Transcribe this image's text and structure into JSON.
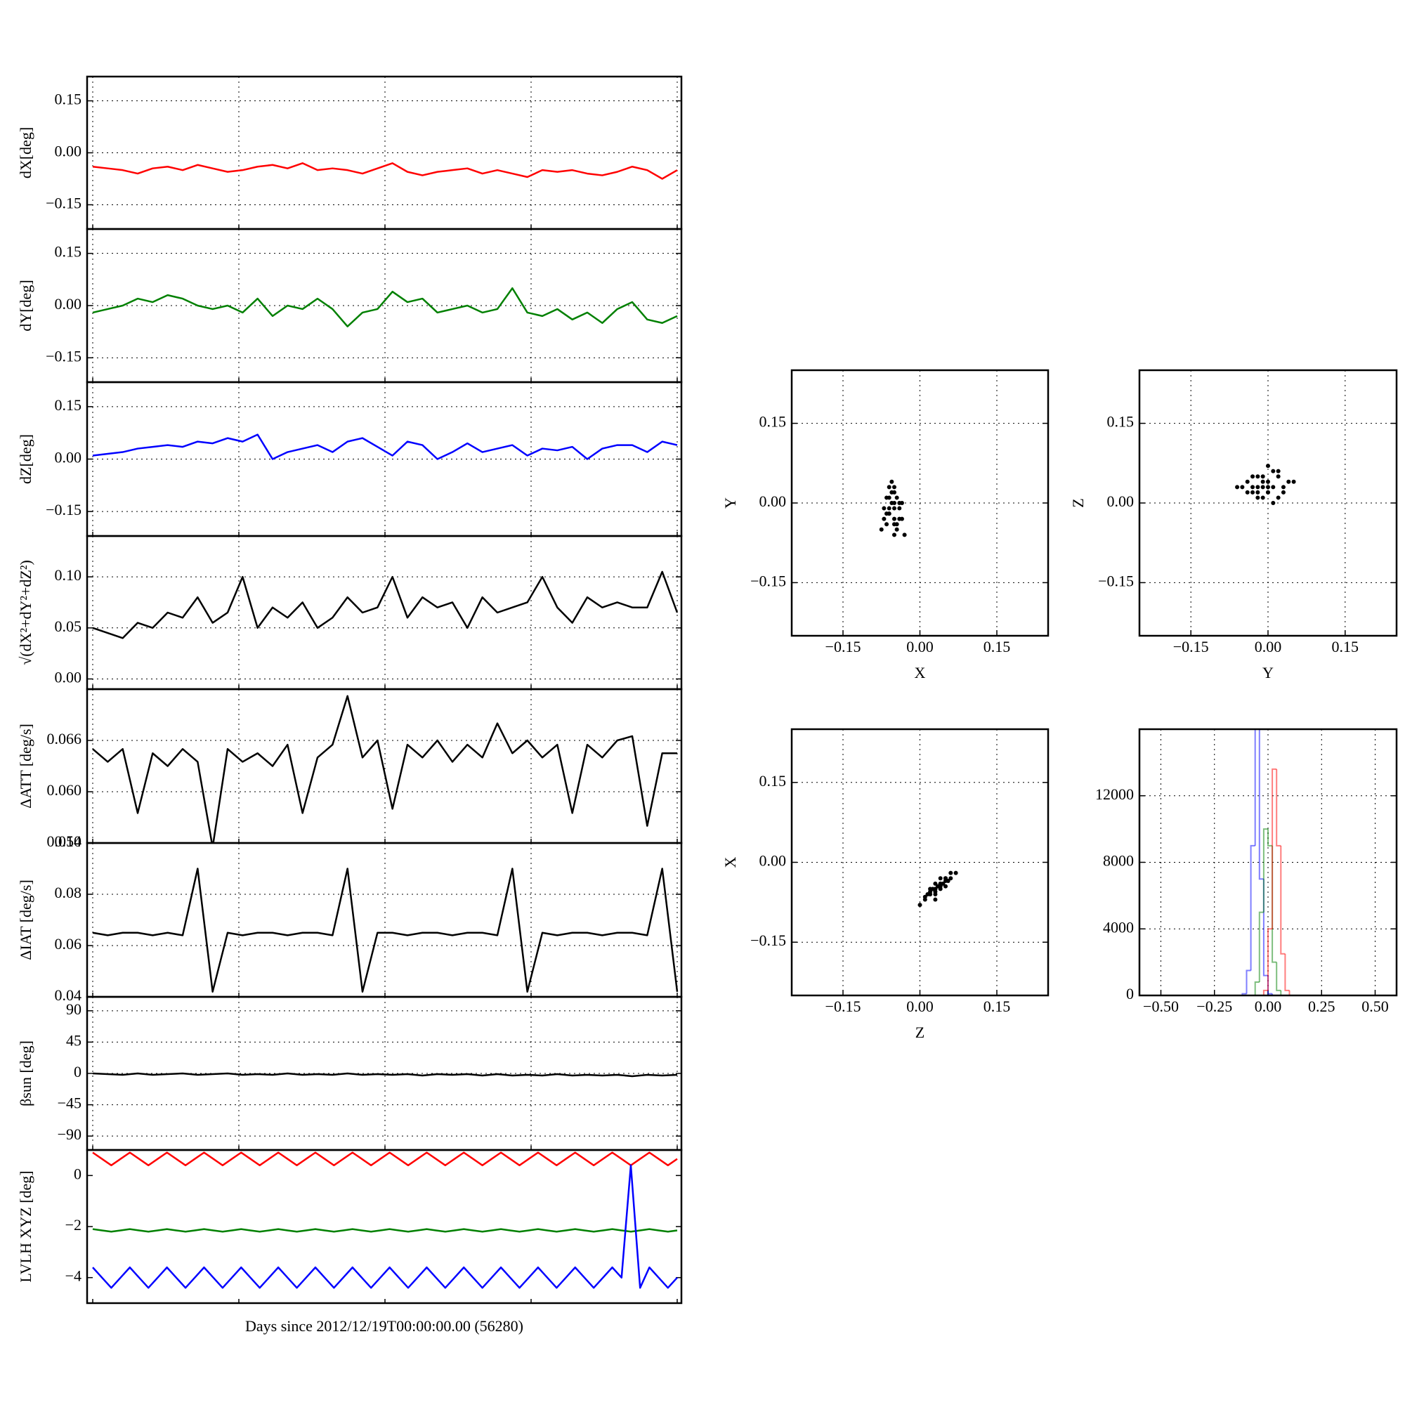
{
  "chart_data": [
    {
      "type": "line",
      "ylabel": "dX[deg]",
      "ylim": [
        -0.22,
        0.22
      ],
      "yticks": [
        0.15,
        {
          "value": 0,
          "label": "0.00"
        },
        {
          "value": -0.15,
          "label": "−0.15"
        }
      ],
      "grid": true,
      "series": [
        {
          "color": "#ff0000",
          "values": [
            -0.04,
            -0.045,
            -0.05,
            -0.06,
            -0.045,
            -0.04,
            -0.05,
            -0.035,
            -0.045,
            -0.055,
            -0.05,
            -0.04,
            -0.035,
            -0.045,
            -0.03,
            -0.05,
            -0.045,
            -0.05,
            -0.06,
            -0.045,
            -0.03,
            -0.055,
            -0.065,
            -0.055,
            -0.05,
            -0.045,
            -0.06,
            -0.05,
            -0.06,
            -0.07,
            -0.05,
            -0.055,
            -0.05,
            -0.06,
            -0.065,
            -0.055,
            -0.04,
            -0.05,
            -0.075,
            -0.05
          ]
        }
      ]
    },
    {
      "type": "line",
      "ylabel": "dY[deg]",
      "ylim": [
        -0.22,
        0.22
      ],
      "yticks": [
        0.15,
        {
          "value": 0,
          "label": "0.00"
        },
        {
          "value": -0.15,
          "label": "−0.15"
        }
      ],
      "grid": true,
      "series": [
        {
          "color": "#008000",
          "values": [
            -0.02,
            -0.01,
            0.0,
            0.02,
            0.01,
            0.03,
            0.02,
            0.0,
            -0.01,
            0.0,
            -0.02,
            0.02,
            -0.03,
            0.0,
            -0.01,
            0.02,
            -0.01,
            -0.06,
            -0.02,
            -0.01,
            0.04,
            0.01,
            0.02,
            -0.02,
            -0.01,
            0.0,
            -0.02,
            -0.01,
            0.05,
            -0.02,
            -0.03,
            -0.01,
            -0.04,
            -0.02,
            -0.05,
            -0.01,
            0.01,
            -0.04,
            -0.05,
            -0.03
          ]
        }
      ]
    },
    {
      "type": "line",
      "ylabel": "dZ[deg]",
      "ylim": [
        -0.22,
        0.22
      ],
      "yticks": [
        0.15,
        {
          "value": 0,
          "label": "0.00"
        },
        {
          "value": -0.15,
          "label": "−0.15"
        }
      ],
      "grid": true,
      "series": [
        {
          "color": "#0000ff",
          "values": [
            0.01,
            0.015,
            0.02,
            0.03,
            0.035,
            0.04,
            0.035,
            0.05,
            0.045,
            0.06,
            0.05,
            0.07,
            0.0,
            0.02,
            0.03,
            0.04,
            0.02,
            0.05,
            0.06,
            0.035,
            0.01,
            0.05,
            0.04,
            0.0,
            0.02,
            0.045,
            0.02,
            0.03,
            0.04,
            0.01,
            0.03,
            0.025,
            0.035,
            0.0,
            0.03,
            0.04,
            0.04,
            0.02,
            0.05,
            0.04
          ]
        }
      ]
    },
    {
      "type": "line",
      "ylabel": "√(dX²+dY²+dZ²)",
      "ylim": [
        -0.01,
        0.14
      ],
      "yticks": [
        {
          "value": 0,
          "label": "0.00"
        },
        0.05,
        {
          "value": 0.1,
          "label": "0.10"
        }
      ],
      "grid": true,
      "series": [
        {
          "color": "#000000",
          "values": [
            0.05,
            0.045,
            0.04,
            0.055,
            0.05,
            0.065,
            0.06,
            0.08,
            0.055,
            0.065,
            0.1,
            0.05,
            0.07,
            0.06,
            0.075,
            0.05,
            0.06,
            0.08,
            0.065,
            0.07,
            0.1,
            0.06,
            0.08,
            0.07,
            0.075,
            0.05,
            0.08,
            0.065,
            0.07,
            0.075,
            0.1,
            0.07,
            0.055,
            0.08,
            0.07,
            0.075,
            0.07,
            0.07,
            0.105,
            0.065
          ]
        }
      ]
    },
    {
      "type": "line",
      "ylabel": "ΔATT [deg/s]",
      "ylim": [
        0.054,
        0.072
      ],
      "yticks": [
        0.054,
        {
          "value": 0.06,
          "label": "0.060"
        },
        0.066
      ],
      "grid": true,
      "series": [
        {
          "color": "#000000",
          "values": [
            0.065,
            0.0635,
            0.065,
            0.0575,
            0.0645,
            0.063,
            0.065,
            0.0635,
            0.0535,
            0.065,
            0.0635,
            0.0645,
            0.063,
            0.0655,
            0.0575,
            0.064,
            0.0655,
            0.0712,
            0.064,
            0.066,
            0.058,
            0.0655,
            0.064,
            0.066,
            0.0635,
            0.0655,
            0.064,
            0.068,
            0.0645,
            0.066,
            0.064,
            0.0655,
            0.0575,
            0.0655,
            0.064,
            0.066,
            0.0665,
            0.056,
            0.0645,
            0.0645
          ]
        }
      ]
    },
    {
      "type": "line",
      "ylabel": "ΔIAT [deg/s]",
      "ylim": [
        0.04,
        0.1
      ],
      "yticks": [
        0.04,
        0.06,
        0.08,
        {
          "value": 0.1,
          "label": "0.10"
        }
      ],
      "grid": true,
      "series": [
        {
          "color": "#000000",
          "values": [
            0.065,
            0.064,
            0.065,
            0.065,
            0.064,
            0.065,
            0.064,
            0.09,
            0.042,
            0.065,
            0.064,
            0.065,
            0.065,
            0.064,
            0.065,
            0.065,
            0.064,
            0.09,
            0.042,
            0.065,
            0.065,
            0.064,
            0.065,
            0.065,
            0.064,
            0.065,
            0.065,
            0.064,
            0.09,
            0.042,
            0.065,
            0.064,
            0.065,
            0.065,
            0.064,
            0.065,
            0.065,
            0.064,
            0.09,
            0.042
          ]
        }
      ]
    },
    {
      "type": "line",
      "ylabel": "βsun [deg]",
      "ylim": [
        -110,
        110
      ],
      "yticks": [
        90,
        45,
        0,
        {
          "value": -45,
          "label": "−45"
        },
        {
          "value": -90,
          "label": "−90"
        }
      ],
      "grid": true,
      "series": [
        {
          "color": "#000000",
          "values": [
            0,
            -1,
            -2,
            0,
            -2,
            -1,
            0,
            -2,
            -1,
            0,
            -2,
            -1,
            -2,
            0,
            -2,
            -1,
            -2,
            0,
            -2,
            -1,
            -2,
            -1,
            -3,
            -1,
            -2,
            -1,
            -3,
            -1,
            -3,
            -2,
            -3,
            -1,
            -3,
            -2,
            -3,
            -2,
            -4,
            -2,
            -3,
            -2
          ]
        }
      ]
    },
    {
      "type": "line",
      "ylabel": "LVLH XYZ [deg]",
      "xlabel": "Days since 2012/12/19T00:00:00.00 (56280)",
      "ylim": [
        -5,
        1
      ],
      "yticks": [
        0,
        {
          "value": -2,
          "label": "−2"
        },
        {
          "value": -4,
          "label": "−4"
        }
      ],
      "grid": false,
      "series": [
        {
          "color": "#ff0000",
          "values": [
            0.9,
            0.65,
            0.4,
            0.65,
            0.9,
            0.65,
            0.4,
            0.65,
            0.9,
            0.65,
            0.4,
            0.65,
            0.9,
            0.65,
            0.4,
            0.65,
            0.9,
            0.65,
            0.4,
            0.65,
            0.9,
            0.65,
            0.4,
            0.65,
            0.9,
            0.65,
            0.4,
            0.65,
            0.9,
            0.65,
            0.4,
            0.65,
            0.9,
            0.65,
            0.4,
            0.65,
            0.9,
            0.65,
            0.4,
            0.65,
            0.9,
            0.65,
            0.4,
            0.65,
            0.9,
            0.65,
            0.4,
            0.65,
            0.9,
            0.65,
            0.4,
            0.65,
            0.9,
            0.65,
            0.4,
            0.65,
            0.9,
            0.65,
            0.4,
            0.65,
            0.9,
            0.65,
            0.4,
            0.65
          ]
        },
        {
          "color": "#008000",
          "values": [
            -2.1,
            -2.15,
            -2.2,
            -2.15,
            -2.1,
            -2.15,
            -2.2,
            -2.15,
            -2.1,
            -2.15,
            -2.2,
            -2.15,
            -2.1,
            -2.15,
            -2.2,
            -2.15,
            -2.1,
            -2.15,
            -2.2,
            -2.15,
            -2.1,
            -2.15,
            -2.2,
            -2.15,
            -2.1,
            -2.15,
            -2.2,
            -2.15,
            -2.1,
            -2.15,
            -2.2,
            -2.15,
            -2.1,
            -2.15,
            -2.2,
            -2.15,
            -2.1,
            -2.15,
            -2.2,
            -2.15,
            -2.1,
            -2.15,
            -2.2,
            -2.15,
            -2.1,
            -2.15,
            -2.2,
            -2.15,
            -2.1,
            -2.15,
            -2.2,
            -2.15,
            -2.1,
            -2.15,
            -2.2,
            -2.15,
            -2.1,
            -2.15,
            -2.2,
            -2.15,
            -2.1,
            -2.15,
            -2.2,
            -2.15
          ]
        },
        {
          "color": "#0000ff",
          "values": [
            -3.6,
            -4.0,
            -4.4,
            -4.0,
            -3.6,
            -4.0,
            -4.4,
            -4.0,
            -3.6,
            -4.0,
            -4.4,
            -4.0,
            -3.6,
            -4.0,
            -4.4,
            -4.0,
            -3.6,
            -4.0,
            -4.4,
            -4.0,
            -3.6,
            -4.0,
            -4.4,
            -4.0,
            -3.6,
            -4.0,
            -4.4,
            -4.0,
            -3.6,
            -4.0,
            -4.4,
            -4.0,
            -3.6,
            -4.0,
            -4.4,
            -4.0,
            -3.6,
            -4.0,
            -4.4,
            -4.0,
            -3.6,
            -4.0,
            -4.4,
            -4.0,
            -3.6,
            -4.0,
            -4.4,
            -4.0,
            -3.6,
            -4.0,
            -4.4,
            -4.0,
            -3.6,
            -4.0,
            -4.4,
            -4.0,
            -3.6,
            -4.0,
            0.4,
            -4.4,
            -3.6,
            -4.0,
            -4.4,
            -4.0
          ]
        }
      ]
    },
    {
      "type": "scatter",
      "xlabel": "X",
      "ylabel": "Y",
      "color": "#000000",
      "xlim": [
        -0.25,
        0.25
      ],
      "ylim": [
        -0.25,
        0.25
      ],
      "grid": true,
      "xticks": [
        {
          "value": -0.15,
          "label": "−0.15"
        },
        {
          "value": 0,
          "label": "0.00"
        },
        0.15
      ],
      "yticks": [
        {
          "value": -0.15,
          "label": "−0.15"
        },
        {
          "value": 0,
          "label": "0.00"
        },
        0.15
      ],
      "x": [
        -0.06,
        -0.05,
        -0.07,
        -0.04,
        -0.055,
        -0.065,
        -0.045,
        -0.05,
        -0.06,
        -0.035,
        -0.07,
        -0.05,
        -0.04,
        -0.06,
        -0.055,
        -0.045,
        -0.065,
        -0.05,
        -0.03,
        -0.075,
        -0.05,
        -0.06,
        -0.04,
        -0.055,
        -0.045,
        -0.065,
        -0.05,
        -0.035,
        -0.06,
        -0.05
      ],
      "y": [
        -0.02,
        0.0,
        -0.03,
        -0.01,
        0.02,
        -0.04,
        -0.05,
        0.03,
        0.01,
        -0.03,
        -0.01,
        -0.06,
        0.0,
        -0.02,
        0.04,
        -0.04,
        0.01,
        -0.03,
        -0.06,
        -0.05,
        0.02,
        -0.01,
        -0.03,
        0.0,
        0.01,
        -0.02,
        -0.04,
        0.0,
        0.03,
        -0.01
      ]
    },
    {
      "type": "scatter",
      "xlabel": "Y",
      "ylabel": "Z",
      "color": "#000000",
      "xlim": [
        -0.25,
        0.25
      ],
      "ylim": [
        -0.25,
        0.25
      ],
      "grid": true,
      "xticks": [
        {
          "value": -0.15,
          "label": "−0.15"
        },
        {
          "value": 0,
          "label": "0.00"
        },
        0.15
      ],
      "yticks": [
        {
          "value": -0.15,
          "label": "−0.15"
        },
        {
          "value": 0,
          "label": "0.00"
        },
        0.15
      ],
      "x": [
        -0.01,
        -0.03,
        0.0,
        0.02,
        -0.05,
        -0.02,
        0.01,
        0.03,
        -0.04,
        0.0,
        -0.01,
        0.02,
        -0.03,
        0.04,
        -0.02,
        0.0,
        0.01,
        -0.06,
        -0.01,
        0.03,
        -0.02,
        0.0,
        0.02,
        -0.04,
        0.01,
        -0.01,
        0.05,
        -0.03,
        0.0,
        -0.02
      ],
      "y": [
        0.03,
        0.02,
        0.04,
        0.05,
        0.03,
        0.01,
        0.06,
        0.03,
        0.04,
        0.02,
        0.05,
        0.01,
        0.03,
        0.04,
        0.02,
        0.07,
        0.0,
        0.03,
        0.04,
        0.02,
        0.05,
        0.03,
        0.06,
        0.02,
        0.03,
        0.01,
        0.04,
        0.05,
        0.02,
        0.03
      ]
    },
    {
      "type": "scatter",
      "xlabel": "Z",
      "ylabel": "X",
      "color": "#000000",
      "xlim": [
        -0.25,
        0.25
      ],
      "ylim": [
        -0.25,
        0.25
      ],
      "grid": true,
      "xticks": [
        {
          "value": -0.15,
          "label": "−0.15"
        },
        {
          "value": 0,
          "label": "0.00"
        },
        0.15
      ],
      "yticks": [
        {
          "value": -0.15,
          "label": "−0.15"
        },
        {
          "value": 0,
          "label": "0.00"
        },
        0.15
      ],
      "x": [
        0.03,
        0.02,
        0.04,
        0.05,
        0.01,
        0.03,
        0.06,
        0.02,
        0.04,
        0.0,
        0.05,
        0.03,
        0.07,
        0.02,
        0.04,
        0.03,
        0.01,
        0.05,
        0.06,
        0.03,
        0.02,
        0.04,
        0.035,
        0.045,
        0.025,
        0.015,
        0.055,
        0.03,
        0.04,
        0.05
      ],
      "y": [
        -0.05,
        -0.06,
        -0.04,
        -0.03,
        -0.07,
        -0.05,
        -0.02,
        -0.06,
        -0.04,
        -0.08,
        -0.03,
        -0.055,
        -0.02,
        -0.05,
        -0.045,
        -0.04,
        -0.065,
        -0.035,
        -0.03,
        -0.06,
        -0.055,
        -0.05,
        -0.045,
        -0.04,
        -0.05,
        -0.06,
        -0.035,
        -0.07,
        -0.03,
        -0.045
      ]
    },
    {
      "type": "histogram",
      "xlim": [
        -0.6,
        0.6
      ],
      "ylim": [
        0,
        16000
      ],
      "grid": true,
      "xticks": [
        {
          "value": -0.5,
          "label": "−0.50"
        },
        {
          "value": -0.25,
          "label": "−0.25"
        },
        {
          "value": 0,
          "label": "0.00"
        },
        0.25,
        {
          "value": 0.5,
          "label": "0.50"
        }
      ],
      "yticks": [
        0,
        4000,
        8000,
        12000
      ],
      "bins": [
        -0.6,
        -0.12,
        -0.1,
        -0.08,
        -0.06,
        -0.04,
        -0.02,
        0,
        0.02,
        0.04,
        0.06,
        0.08,
        0.1,
        0.12,
        0.6
      ],
      "series": [
        {
          "color": "#0000ff",
          "values": [
            0,
            100,
            1500,
            9000,
            16000,
            7000,
            1200,
            100,
            0,
            0,
            0,
            0,
            0,
            0
          ]
        },
        {
          "color": "#008000",
          "values": [
            0,
            0,
            0,
            0,
            800,
            5000,
            10000,
            9000,
            2000,
            300,
            0,
            0,
            0,
            0
          ]
        },
        {
          "color": "#ff0000",
          "values": [
            0,
            0,
            0,
            0,
            0,
            0,
            300,
            4000,
            13600,
            9000,
            2500,
            300,
            0,
            0
          ]
        }
      ]
    }
  ]
}
